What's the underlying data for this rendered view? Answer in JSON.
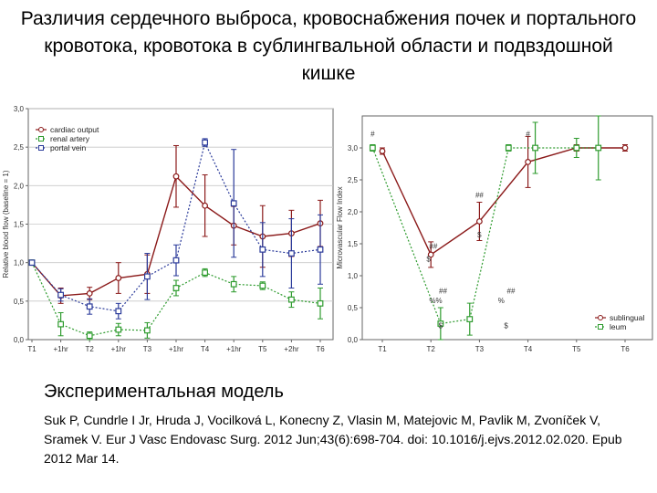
{
  "title": "Различия сердечного выброса, кровоснабжения почек и портального кровотока, кровотока в сублингвальной области и подвздошной кишке",
  "caption": "Экспериментальная модель",
  "citation": "Suk P, Cundrle I Jr, Hruda J, Vocilková L, Konecny Z, Vlasin M, Matejovic M, Pavlik M, Zvoníček V, Sramek V. Eur J Vasc Endovasc Surg. 2012 Jun;43(6):698-704. doi: 10.1016/j.ejvs.2012.02.020. Epub 2012 Mar 14.",
  "colors": {
    "red": "#8b1a1a",
    "green": "#2e9b2e",
    "blue": "#2a3a9a",
    "grid": "#c8c8c8",
    "axis": "#666666"
  },
  "chart_data": [
    {
      "type": "line",
      "ylabel": "Relative blood flow (baseline = 1)",
      "ylim": [
        0,
        3
      ],
      "yticks": [
        "0,0",
        "0,5",
        "1,0",
        "1,5",
        "2,0",
        "2,5",
        "3,0"
      ],
      "categories": [
        "T1",
        "+1hr",
        "T2",
        "+1hr",
        "T3",
        "+1hr",
        "T4",
        "+1hr",
        "T5",
        "+2hr",
        "T6"
      ],
      "grid": true,
      "legend_position": "top-left",
      "series": [
        {
          "name": "cardiac output",
          "color": "red",
          "marker": "circle",
          "dash": false,
          "values": [
            1.0,
            0.57,
            0.6,
            0.8,
            0.85,
            2.12,
            1.74,
            1.48,
            1.34,
            1.38,
            1.51
          ],
          "err": [
            0.02,
            0.1,
            0.08,
            0.2,
            0.25,
            0.4,
            0.4,
            0.25,
            0.4,
            0.3,
            0.3
          ]
        },
        {
          "name": "renal artery",
          "color": "green",
          "marker": "square",
          "dash": true,
          "values": [
            1.0,
            0.2,
            0.05,
            0.13,
            0.12,
            0.67,
            0.87,
            0.72,
            0.7,
            0.52,
            0.47
          ],
          "err": [
            0.02,
            0.15,
            0.05,
            0.08,
            0.1,
            0.1,
            0.05,
            0.1,
            0.05,
            0.1,
            0.2
          ]
        },
        {
          "name": "portal vein",
          "color": "blue",
          "marker": "square",
          "dash": true,
          "values": [
            1.0,
            0.58,
            0.43,
            0.37,
            0.82,
            1.03,
            2.56,
            1.77,
            1.17,
            1.12,
            1.17
          ],
          "err": [
            0.02,
            0.08,
            0.1,
            0.1,
            0.3,
            0.2,
            0.05,
            0.7,
            0.35,
            0.45,
            0.45
          ]
        }
      ]
    },
    {
      "type": "line",
      "ylabel": "Microvascular Flow Index",
      "ylim": [
        0,
        3.5
      ],
      "yticks": [
        "0,0",
        "0,5",
        "1,0",
        "1,5",
        "2,0",
        "2,5",
        "3,0"
      ],
      "categories": [
        "T1",
        "T2",
        "T3",
        "T4",
        "T5",
        "T6"
      ],
      "grid": false,
      "legend_position": "bottom-right",
      "series": [
        {
          "name": "sublingual",
          "color": "red",
          "marker": "circle",
          "dash": false,
          "x": [
            0,
            1,
            2,
            3,
            4,
            5
          ],
          "values": [
            2.95,
            1.33,
            1.85,
            2.78,
            3.0,
            3.0
          ],
          "err": [
            0.05,
            0.2,
            0.3,
            0.4,
            0.05,
            0.05
          ]
        },
        {
          "name": "leum",
          "color": "green",
          "marker": "square",
          "dash": true,
          "x": [
            -0.2,
            1.2,
            1.8,
            2.6,
            3.15,
            4.0,
            4.45
          ],
          "values": [
            3.0,
            0.25,
            0.32,
            3.0,
            3.0,
            3.0,
            3.0
          ],
          "err": [
            0.05,
            0.25,
            0.25,
            0.05,
            0.4,
            0.15,
            0.5
          ]
        }
      ],
      "annotations": [
        {
          "text": "#",
          "x": -0.2,
          "y": 3.18
        },
        {
          "text": "##",
          "x": 1.05,
          "y": 1.42
        },
        {
          "text": "$",
          "x": 0.95,
          "y": 1.22
        },
        {
          "text": "%%",
          "x": 1.1,
          "y": 0.57
        },
        {
          "text": "##",
          "x": 1.25,
          "y": 0.72
        },
        {
          "text": "$",
          "x": 1.2,
          "y": 0.18
        },
        {
          "text": "##",
          "x": 2.0,
          "y": 2.22
        },
        {
          "text": "$",
          "x": 2.0,
          "y": 1.6
        },
        {
          "text": "%",
          "x": 2.45,
          "y": 0.57
        },
        {
          "text": "##",
          "x": 2.65,
          "y": 0.72
        },
        {
          "text": "$",
          "x": 2.55,
          "y": 0.18
        },
        {
          "text": "#",
          "x": 3.0,
          "y": 3.18
        }
      ]
    }
  ]
}
